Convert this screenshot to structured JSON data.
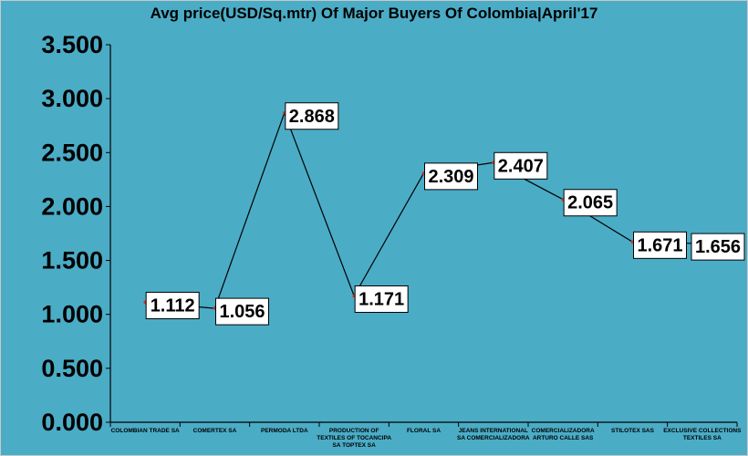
{
  "chart_data": {
    "type": "line",
    "title": "Avg price(USD/Sq.mtr) Of Major Buyers Of Colombia|April'17",
    "categories": [
      "COLOMBIAN TRADE SA",
      "COMERTEX SA",
      "PERMODA LTDA",
      "PRODUCTION OF TEXTILES OF TOCANCIPA SA TOPTEX SA",
      "FLORAL SA",
      "JEANS INTERNATIONAL SA COMERCIALIZADORA",
      "COMERCIALIZADORA ARTURO CALLE SAS",
      "STILOTEX SAS",
      "EXCLUSIVE COLLECTIONS TEXTILES SA"
    ],
    "category_lines": [
      [
        "COLOMBIAN TRADE SA"
      ],
      [
        "COMERTEX SA"
      ],
      [
        "PERMODA LTDA"
      ],
      [
        "PRODUCTION OF",
        "TEXTILES OF TOCANCIPA",
        "SA TOPTEX SA"
      ],
      [
        "FLORAL SA"
      ],
      [
        "JEANS INTERNATIONAL",
        "SA COMERCIALIZADORA"
      ],
      [
        "COMERCIALIZADORA",
        "ARTURO CALLE SAS"
      ],
      [
        "STILOTEX SAS"
      ],
      [
        "EXCLUSIVE COLLECTIONS",
        "TEXTILES SA"
      ]
    ],
    "values": [
      1.112,
      1.056,
      2.868,
      1.171,
      2.309,
      2.407,
      2.065,
      1.671,
      1.656
    ],
    "data_labels": [
      "1.112",
      "1.056",
      "2.868",
      "1.171",
      "2.309",
      "2.407",
      "2.065",
      "1.671",
      "1.656"
    ],
    "ylim": [
      0,
      3.5
    ],
    "yticks": [
      0,
      0.5,
      1.0,
      1.5,
      2.0,
      2.5,
      3.0,
      3.5
    ],
    "ytick_labels": [
      "0.000",
      "0.500",
      "1.000",
      "1.500",
      "2.000",
      "2.500",
      "3.000",
      "3.500"
    ],
    "xlabel": "",
    "ylabel": "",
    "grid": false,
    "legend": "none",
    "colors": {
      "background": "#4bacc6",
      "line": "#000000",
      "marker": "#c0392b",
      "label_box": "#ffffff"
    }
  }
}
